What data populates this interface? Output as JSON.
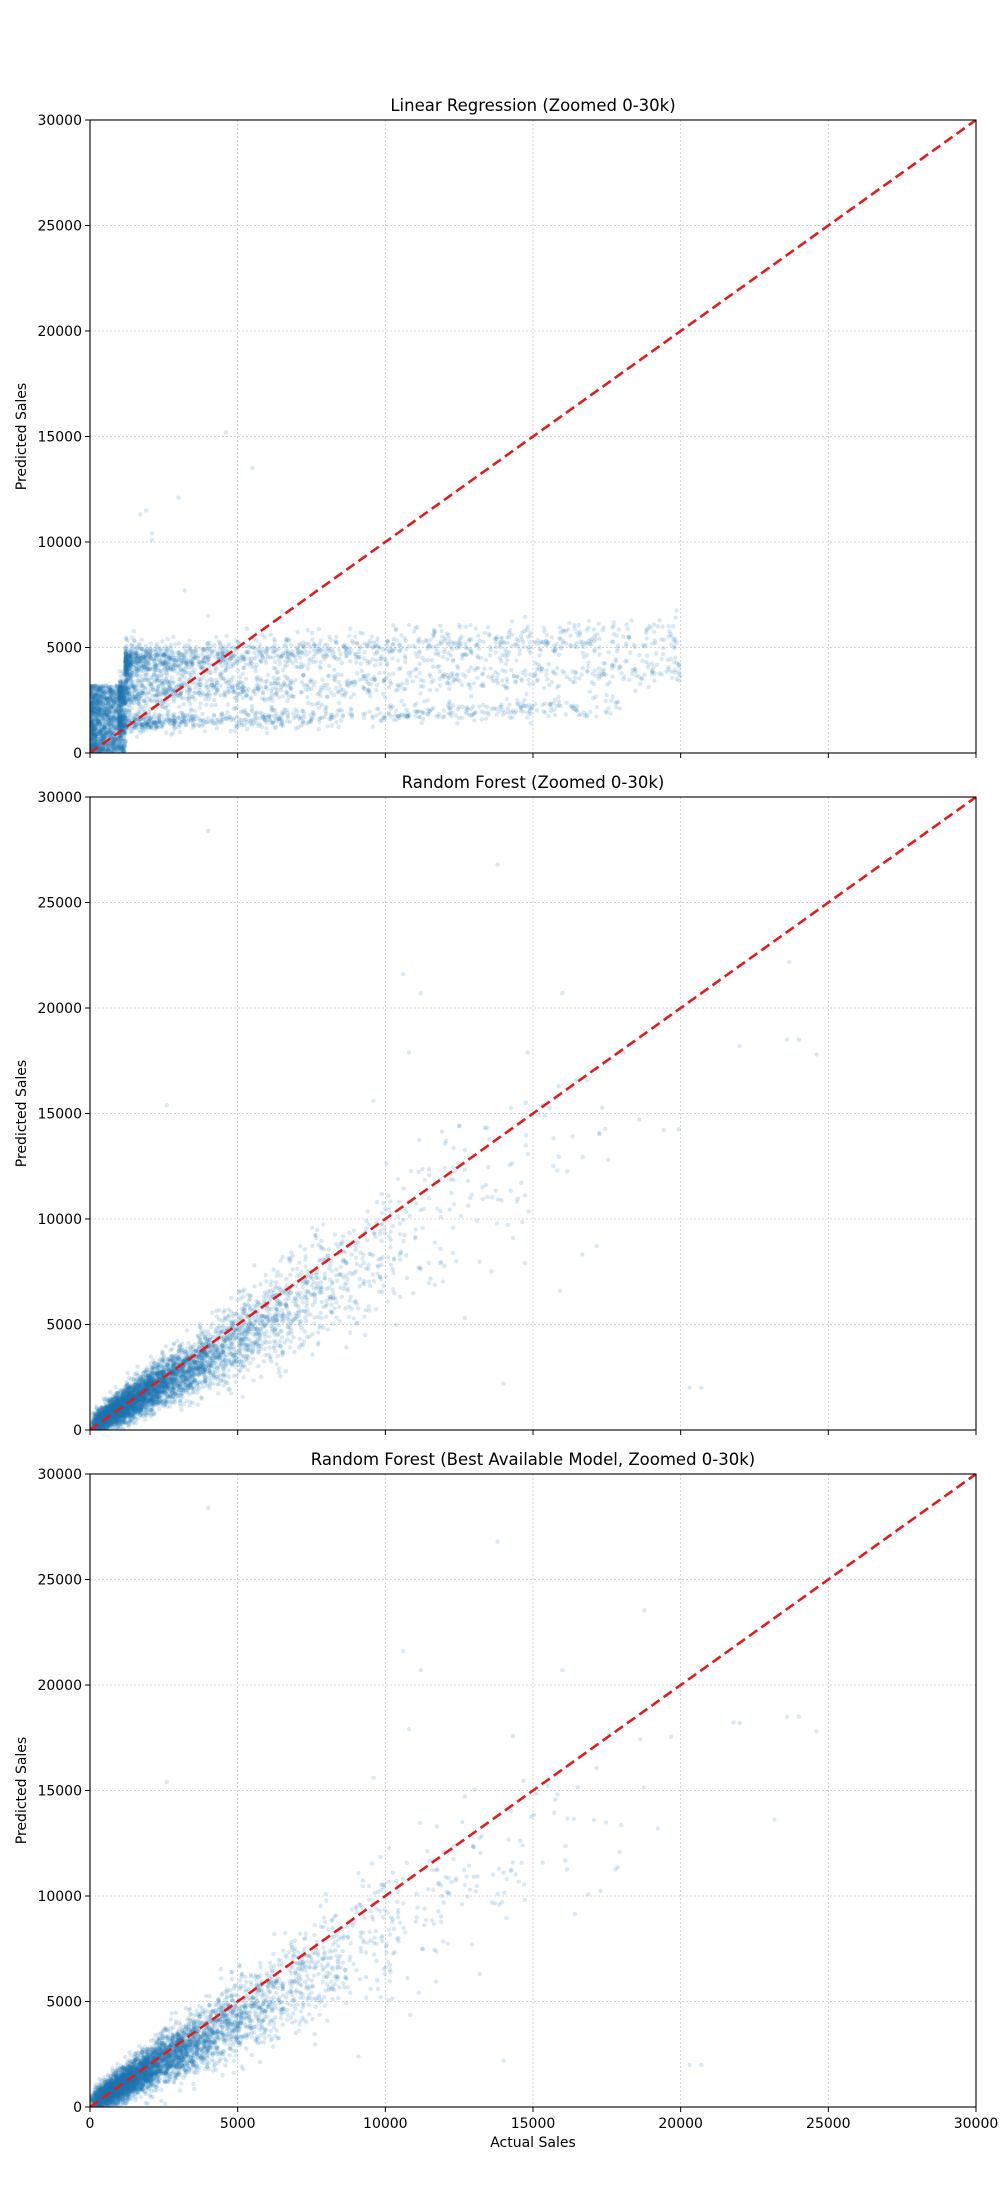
{
  "colors": {
    "points": "#1f77b4",
    "identity_line": "#e41a1c",
    "grid": "#c8c8c8",
    "axes": "#000000"
  },
  "chart_data": [
    {
      "type": "scatter",
      "title": "Linear Regression (Zoomed 0-30k)",
      "xlabel": "",
      "ylabel": "Predicted Sales",
      "xlim": [
        0,
        30000
      ],
      "ylim": [
        0,
        30000
      ],
      "xticks": [
        "0",
        "5000",
        "10000",
        "15000",
        "20000",
        "25000",
        "30000"
      ],
      "yticks": [
        "0",
        "5000",
        "10000",
        "15000",
        "20000",
        "25000",
        "30000"
      ],
      "show_xtick_labels": false,
      "grid": true,
      "reference_line": "y = x (red dashed)",
      "point_clusters": [
        {
          "x_range": [
            0,
            1200
          ],
          "y_range": [
            0,
            3200
          ],
          "count": 1400
        },
        {
          "x_range": [
            1200,
            20000
          ],
          "y_mean_at_x0": 4300,
          "y_slope": 0.07,
          "y_max": 5700,
          "y_spread": 450,
          "count": 1400
        },
        {
          "x_range": [
            1000,
            20000
          ],
          "y_mean_at_x0": 2800,
          "y_slope": 0.06,
          "y_max": 4100,
          "y_spread": 350,
          "count": 1000
        },
        {
          "x_range": [
            1000,
            18000
          ],
          "y_mean_at_x0": 1400,
          "y_slope": 0.05,
          "y_max": 2600,
          "y_spread": 250,
          "count": 800
        }
      ],
      "outliers": [
        [
          1700,
          11300
        ],
        [
          1900,
          11500
        ],
        [
          2100,
          10400
        ],
        [
          2100,
          10100
        ],
        [
          3000,
          12100
        ],
        [
          3200,
          7700
        ],
        [
          4600,
          15200
        ],
        [
          5500,
          13500
        ],
        [
          4000,
          6500
        ],
        [
          6500,
          6700
        ]
      ]
    },
    {
      "type": "scatter",
      "title": "Random Forest (Zoomed 0-30k)",
      "xlabel": "",
      "ylabel": "Predicted Sales",
      "xlim": [
        0,
        30000
      ],
      "ylim": [
        0,
        30000
      ],
      "xticks": [
        "0",
        "5000",
        "10000",
        "15000",
        "20000",
        "25000",
        "30000"
      ],
      "yticks": [
        "0",
        "5000",
        "10000",
        "15000",
        "20000",
        "25000",
        "30000"
      ],
      "show_xtick_labels": false,
      "grid": true,
      "reference_line": "y = x (red dashed)",
      "trend": {
        "x_range": [
          0,
          24500
        ],
        "slope": 0.85,
        "y_spread_base": 250,
        "y_spread_ratio": 0.13
      },
      "point_count": 5000,
      "outliers": [
        [
          4000,
          28400
        ],
        [
          13800,
          26800
        ],
        [
          10600,
          21600
        ],
        [
          11200,
          20700
        ],
        [
          16000,
          20700
        ],
        [
          2600,
          15400
        ],
        [
          9600,
          15600
        ],
        [
          10800,
          17900
        ],
        [
          22000,
          18200
        ],
        [
          23600,
          18500
        ],
        [
          24000,
          18500
        ],
        [
          24600,
          17800
        ],
        [
          20300,
          2000
        ],
        [
          20700,
          2000
        ],
        [
          14000,
          2200
        ]
      ]
    },
    {
      "type": "scatter",
      "title": "Random Forest (Best Available Model, Zoomed 0-30k)",
      "xlabel": "Actual Sales",
      "ylabel": "Predicted Sales",
      "xlim": [
        0,
        30000
      ],
      "ylim": [
        0,
        30000
      ],
      "xticks": [
        "0",
        "5000",
        "10000",
        "15000",
        "20000",
        "25000",
        "30000"
      ],
      "yticks": [
        "0",
        "5000",
        "10000",
        "15000",
        "20000",
        "25000",
        "30000"
      ],
      "show_xtick_labels": true,
      "grid": true,
      "reference_line": "y = x (red dashed)",
      "trend": {
        "x_range": [
          0,
          24500
        ],
        "slope": 0.85,
        "y_spread_base": 250,
        "y_spread_ratio": 0.13
      },
      "point_count": 5000,
      "outliers": [
        [
          4000,
          28400
        ],
        [
          13800,
          26800
        ],
        [
          10600,
          21600
        ],
        [
          11200,
          20700
        ],
        [
          16000,
          20700
        ],
        [
          2600,
          15400
        ],
        [
          9600,
          15600
        ],
        [
          10800,
          17900
        ],
        [
          22000,
          18200
        ],
        [
          23600,
          18500
        ],
        [
          24000,
          18500
        ],
        [
          24600,
          17800
        ],
        [
          20300,
          2000
        ],
        [
          20700,
          2000
        ],
        [
          14000,
          2200
        ]
      ]
    }
  ]
}
